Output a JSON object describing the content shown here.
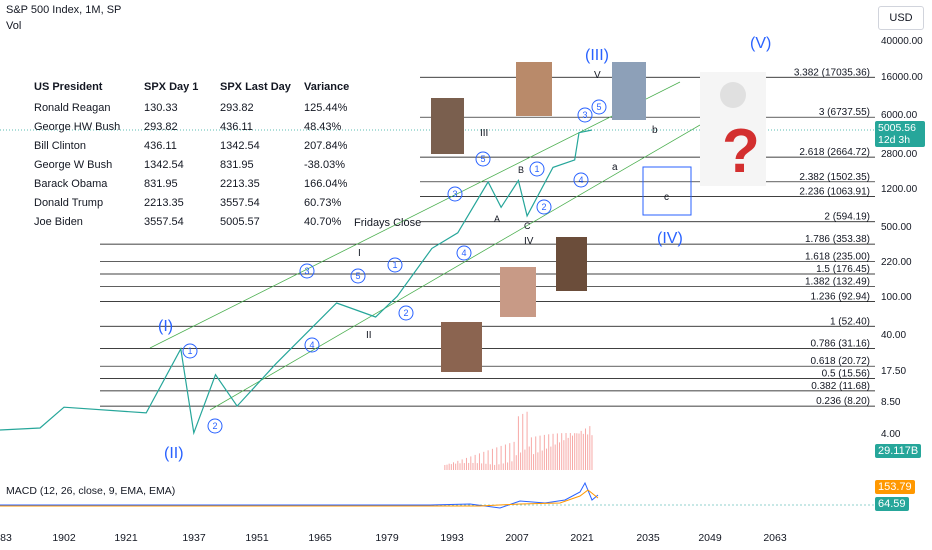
{
  "header": {
    "title": "S&P 500 Index, 1M, SP",
    "vol_label": "Vol",
    "currency_button": "USD"
  },
  "table": {
    "headers": [
      "US President",
      "SPX Day 1",
      "SPX Last Day",
      "Variance"
    ],
    "rows": [
      [
        "Ronald Reagan",
        "130.33",
        "293.82",
        "125.44%"
      ],
      [
        "George HW Bush",
        "293.82",
        "436.11",
        "48.43%"
      ],
      [
        "Bill Clinton",
        "436.11",
        "1342.54",
        "207.84%"
      ],
      [
        "George W Bush",
        "1342.54",
        "831.95",
        "-38.03%"
      ],
      [
        "Barack Obama",
        "831.95",
        "2213.35",
        "166.04%"
      ],
      [
        "Donald Trump",
        "2213.35",
        "3557.54",
        "60.73%"
      ],
      [
        "Joe Biden",
        "3557.54",
        "5005.57",
        "40.70%"
      ]
    ]
  },
  "price_axis": {
    "ticks": [
      "40000.00",
      "16000.00",
      "6000.00",
      "2800.00",
      "1200.00",
      "500.00",
      "220.00",
      "100.00",
      "40.00",
      "17.50",
      "8.50",
      "4.00"
    ],
    "last_price": "5005.56",
    "countdown": "12d 3h",
    "volume_tag": "29.117B"
  },
  "time_axis": {
    "ticks": [
      "83",
      "1902",
      "1921",
      "1937",
      "1951",
      "1965",
      "1979",
      "1993",
      "2007",
      "2021",
      "2035",
      "2049",
      "2063"
    ]
  },
  "fib_levels": [
    {
      "label": "3.382 (17035.36)",
      "value": 17035.36
    },
    {
      "label": "3 (6737.55)",
      "value": 6737.55
    },
    {
      "label": "2.618 (2664.72)",
      "value": 2664.72
    },
    {
      "label": "2.382 (1502.35)",
      "value": 1502.35
    },
    {
      "label": "2.236 (1063.91)",
      "value": 1063.91
    },
    {
      "label": "2 (594.19)",
      "value": 594.19
    },
    {
      "label": "1.786 (353.38)",
      "value": 353.38
    },
    {
      "label": "1.618 (235.00)",
      "value": 235.0
    },
    {
      "label": "1.5 (176.45)",
      "value": 176.45
    },
    {
      "label": "1.382 (132.49)",
      "value": 132.49
    },
    {
      "label": "1.236 (92.94)",
      "value": 92.94
    },
    {
      "label": "1 (52.40)",
      "value": 52.4
    },
    {
      "label": "0.786 (31.16)",
      "value": 31.16
    },
    {
      "label": "0.618 (20.72)",
      "value": 20.72
    },
    {
      "label": "0.5 (15.56)",
      "value": 15.56
    },
    {
      "label": "0.382 (11.68)",
      "value": 11.68
    },
    {
      "label": "0.236 (8.20)",
      "value": 8.2
    }
  ],
  "annotations": {
    "wave_I": "(I)",
    "wave_II": "(II)",
    "wave_III": "(III)",
    "wave_IV": "(IV)",
    "wave_V": "(V)",
    "fridays_close": "Fridays Close",
    "roman_I": "I",
    "roman_II": "II",
    "roman_III": "III",
    "roman_IV": "IV",
    "roman_V": "V",
    "letter_a": "a",
    "letter_b": "b",
    "letter_c": "c",
    "letter_A": "A",
    "letter_B": "B",
    "letter_C": "C"
  },
  "macd": {
    "label": "MACD (12, 26, close, 9, EMA, EMA)",
    "value1": "153.79",
    "value2": "64.59"
  },
  "colors": {
    "blue_wave": "#2962ff",
    "price_line": "#26a69a",
    "volume": "#ef5350",
    "macd_orange": "#ff9800",
    "last_price_tag": "#26a69a"
  },
  "chart_data": {
    "type": "line",
    "title": "S&P 500 Index, 1M, SP",
    "y_scale": "log",
    "ylim": [
      4.0,
      40000.0
    ],
    "x": [
      1902,
      1921,
      1929,
      1932,
      1937,
      1942,
      1951,
      1965,
      1974,
      1979,
      1987,
      1993,
      2000,
      2003,
      2007,
      2009,
      2015,
      2020,
      2021,
      2024
    ],
    "series": [
      {
        "values": [
          8,
          7,
          31,
          4.4,
          17,
          8.2,
          22,
          90,
          65,
          105,
          320,
          460,
          1500,
          830,
          1550,
          680,
          2100,
          2500,
          4700,
          5005.56
        ]
      }
    ]
  }
}
